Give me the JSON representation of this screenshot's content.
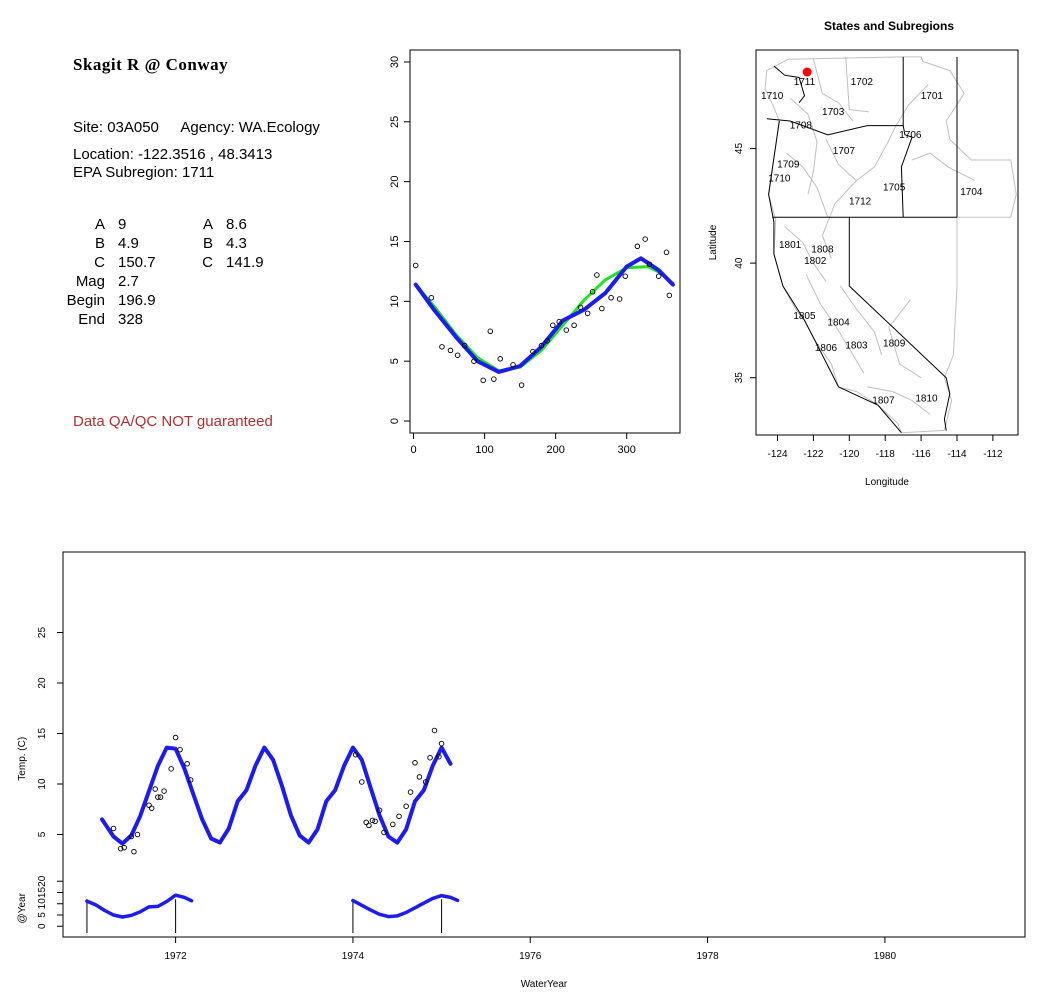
{
  "site": {
    "title": "Skagit R @ Conway",
    "site_line_label": "Site:",
    "site_id": "03A050",
    "agency_label": "Agency:",
    "agency": "WA.Ecology",
    "location_line": "Location: -122.3516 , 48.3413",
    "subregion_line": "EPA Subregion: 1711",
    "qa_note": "Data QA/QC NOT guaranteed"
  },
  "params": [
    {
      "key": "A",
      "val": "9",
      "key2": "A",
      "val2": "8.6"
    },
    {
      "key": "B",
      "val": "4.9",
      "key2": "B",
      "val2": "4.3"
    },
    {
      "key": "C",
      "val": "150.7",
      "key2": "C",
      "val2": "141.9"
    },
    {
      "key": "Mag",
      "val": "2.7",
      "key2": "",
      "val2": ""
    },
    {
      "key": "Begin",
      "val": "196.9",
      "key2": "",
      "val2": ""
    },
    {
      "key": "End",
      "val": "328",
      "key2": "",
      "val2": ""
    }
  ],
  "colors": {
    "blue": "#1c1cf0",
    "green": "#1ee61e",
    "red": "#ff0000",
    "outline": "#000000",
    "grey": "#c0c0c0",
    "qa": "#b03030"
  },
  "chart_data": [
    {
      "type": "scatter",
      "title": "",
      "xlabel": "",
      "ylabel": "",
      "xlim": [
        -5,
        375
      ],
      "ylim": [
        -1,
        31
      ],
      "xticks": [
        0,
        100,
        200,
        300
      ],
      "yticks": [
        0,
        5,
        10,
        15,
        20,
        25,
        30
      ],
      "points": [
        [
          3,
          13.0
        ],
        [
          25,
          10.3
        ],
        [
          40,
          6.2
        ],
        [
          52,
          5.9
        ],
        [
          62,
          5.5
        ],
        [
          72,
          6.3
        ],
        [
          85,
          5.0
        ],
        [
          98,
          3.4
        ],
        [
          108,
          7.5
        ],
        [
          113,
          3.5
        ],
        [
          122,
          5.2
        ],
        [
          140,
          4.7
        ],
        [
          152,
          3.0
        ],
        [
          168,
          5.8
        ],
        [
          180,
          6.3
        ],
        [
          188,
          6.7
        ],
        [
          196,
          8.0
        ],
        [
          205,
          8.3
        ],
        [
          215,
          7.6
        ],
        [
          226,
          8.0
        ],
        [
          235,
          9.5
        ],
        [
          245,
          9.0
        ],
        [
          252,
          10.8
        ],
        [
          258,
          12.2
        ],
        [
          265,
          9.4
        ],
        [
          278,
          10.3
        ],
        [
          290,
          10.2
        ],
        [
          298,
          12.1
        ],
        [
          315,
          14.6
        ],
        [
          326,
          15.2
        ],
        [
          332,
          13.1
        ],
        [
          345,
          12.1
        ],
        [
          356,
          14.1
        ],
        [
          360,
          10.5
        ]
      ],
      "series": [
        {
          "color": "blue",
          "curve": [
            [
              3,
              11.4
            ],
            [
              30,
              9.2
            ],
            [
              60,
              7.0
            ],
            [
              90,
              5.0
            ],
            [
              120,
              4.1
            ],
            [
              150,
              4.6
            ],
            [
              180,
              6.2
            ],
            [
              210,
              8.4
            ],
            [
              240,
              9.3
            ],
            [
              270,
              10.7
            ],
            [
              300,
              12.9
            ],
            [
              320,
              13.6
            ],
            [
              345,
              12.6
            ],
            [
              365,
              11.4
            ]
          ]
        },
        {
          "color": "green",
          "curve": [
            [
              3,
              11.4
            ],
            [
              30,
              9.5
            ],
            [
              60,
              7.2
            ],
            [
              90,
              5.3
            ],
            [
              120,
              4.2
            ],
            [
              150,
              4.5
            ],
            [
              180,
              5.9
            ],
            [
              210,
              8.0
            ],
            [
              240,
              10.1
            ],
            [
              270,
              11.8
            ],
            [
              300,
              12.8
            ],
            [
              330,
              12.9
            ],
            [
              350,
              12.3
            ],
            [
              365,
              11.5
            ]
          ]
        }
      ]
    },
    {
      "type": "map",
      "title": "States and Subregions",
      "xlabel": "Longitude",
      "ylabel": "Latitude",
      "xlim": [
        -125.2,
        -110.6
      ],
      "ylim": [
        32.5,
        49.3
      ],
      "xticks": [
        -124,
        -122,
        -120,
        -118,
        -116,
        -114,
        -112
      ],
      "yticks": [
        35,
        40,
        45
      ],
      "site_point": [
        -122.35,
        48.34
      ],
      "regions": [
        {
          "label": "1702",
          "lon": -119.3,
          "lat": 47.9
        },
        {
          "label": "1701",
          "lon": -115.4,
          "lat": 47.3
        },
        {
          "label": "1711",
          "lon": -122.5,
          "lat": 47.9
        },
        {
          "label": "1710",
          "lon": -124.3,
          "lat": 47.3
        },
        {
          "label": "1703",
          "lon": -120.9,
          "lat": 46.6
        },
        {
          "label": "1708",
          "lon": -122.7,
          "lat": 46.0
        },
        {
          "label": "1706",
          "lon": -116.6,
          "lat": 45.6
        },
        {
          "label": "1707",
          "lon": -120.3,
          "lat": 44.9
        },
        {
          "label": "1709",
          "lon": -123.4,
          "lat": 44.3
        },
        {
          "label": "1710",
          "lon": -123.9,
          "lat": 43.7
        },
        {
          "label": "1705",
          "lon": -117.5,
          "lat": 43.3
        },
        {
          "label": "1704",
          "lon": -113.2,
          "lat": 43.1
        },
        {
          "label": "1712",
          "lon": -119.4,
          "lat": 42.7
        },
        {
          "label": "1801",
          "lon": -123.3,
          "lat": 40.8
        },
        {
          "label": "1808",
          "lon": -121.5,
          "lat": 40.6
        },
        {
          "label": "1802",
          "lon": -121.9,
          "lat": 40.1
        },
        {
          "label": "1805",
          "lon": -122.5,
          "lat": 37.7
        },
        {
          "label": "1804",
          "lon": -120.6,
          "lat": 37.4
        },
        {
          "label": "1806",
          "lon": -121.3,
          "lat": 36.3
        },
        {
          "label": "1803",
          "lon": -119.6,
          "lat": 36.4
        },
        {
          "label": "1809",
          "lon": -117.5,
          "lat": 36.5
        },
        {
          "label": "1807",
          "lon": -118.1,
          "lat": 34.0
        },
        {
          "label": "1810",
          "lon": -115.7,
          "lat": 34.1
        }
      ]
    },
    {
      "type": "scatter",
      "title": "",
      "xlabel": "WaterYear",
      "ylabel": "Temp. (C)",
      "xlim": [
        1970.73,
        1981.58
      ],
      "ylim": [
        0,
        30
      ],
      "xticks": [
        1972,
        1974,
        1976,
        1978,
        1980
      ],
      "yticks": [
        5,
        10,
        15,
        20,
        25
      ],
      "points": [
        [
          1971.3,
          5.6
        ],
        [
          1971.38,
          3.6
        ],
        [
          1971.42,
          3.7
        ],
        [
          1971.5,
          4.8
        ],
        [
          1971.53,
          3.3
        ],
        [
          1971.57,
          5.0
        ],
        [
          1971.7,
          7.9
        ],
        [
          1971.73,
          7.6
        ],
        [
          1971.77,
          9.5
        ],
        [
          1971.8,
          8.7
        ],
        [
          1971.83,
          8.7
        ],
        [
          1971.87,
          9.3
        ],
        [
          1971.95,
          11.5
        ],
        [
          1972.0,
          14.6
        ],
        [
          1972.05,
          13.4
        ],
        [
          1972.13,
          12.0
        ],
        [
          1972.17,
          10.4
        ],
        [
          1974.03,
          12.9
        ],
        [
          1974.1,
          10.2
        ],
        [
          1974.15,
          6.2
        ],
        [
          1974.18,
          5.9
        ],
        [
          1974.22,
          6.4
        ],
        [
          1974.25,
          6.3
        ],
        [
          1974.3,
          7.4
        ],
        [
          1974.35,
          5.2
        ],
        [
          1974.45,
          6.0
        ],
        [
          1974.52,
          6.8
        ],
        [
          1974.6,
          7.8
        ],
        [
          1974.65,
          9.2
        ],
        [
          1974.7,
          12.1
        ],
        [
          1974.75,
          10.7
        ],
        [
          1974.82,
          10.2
        ],
        [
          1974.87,
          12.6
        ],
        [
          1974.92,
          15.3
        ],
        [
          1974.97,
          12.7
        ],
        [
          1975.0,
          14.0
        ]
      ],
      "series": [
        {
          "color": "blue",
          "curve": [
            [
              1971.17,
              6.5
            ],
            [
              1971.3,
              4.8
            ],
            [
              1971.4,
              4.1
            ],
            [
              1971.5,
              4.9
            ],
            [
              1971.6,
              6.8
            ],
            [
              1971.7,
              9.3
            ],
            [
              1971.8,
              11.8
            ],
            [
              1971.9,
              13.6
            ],
            [
              1972.0,
              13.5
            ],
            [
              1972.1,
              11.5
            ],
            [
              1972.2,
              9.0
            ],
            [
              1972.3,
              6.5
            ],
            [
              1972.4,
              4.6
            ],
            [
              1972.5,
              4.2
            ],
            [
              1972.6,
              5.6
            ],
            [
              1972.7,
              8.3
            ],
            [
              1972.8,
              9.4
            ],
            [
              1972.9,
              11.8
            ],
            [
              1973.0,
              13.6
            ],
            [
              1973.1,
              12.4
            ],
            [
              1973.2,
              9.8
            ],
            [
              1973.3,
              6.9
            ],
            [
              1973.4,
              4.9
            ],
            [
              1973.5,
              4.2
            ],
            [
              1973.6,
              5.5
            ],
            [
              1973.7,
              8.3
            ],
            [
              1973.8,
              9.4
            ],
            [
              1973.9,
              11.8
            ],
            [
              1974.0,
              13.6
            ],
            [
              1974.1,
              12.4
            ],
            [
              1974.2,
              9.6
            ],
            [
              1974.3,
              6.9
            ],
            [
              1974.4,
              4.8
            ],
            [
              1974.5,
              4.2
            ],
            [
              1974.6,
              5.5
            ],
            [
              1974.7,
              8.3
            ],
            [
              1974.8,
              9.4
            ],
            [
              1974.9,
              11.8
            ],
            [
              1975.0,
              13.6
            ],
            [
              1975.1,
              12.0
            ]
          ]
        }
      ]
    },
    {
      "type": "line",
      "title": "",
      "xlabel": "",
      "ylabel": "@Year",
      "xlim": [
        1970.73,
        1981.58
      ],
      "ylim": [
        -3,
        25
      ],
      "yticks": [
        0,
        5,
        10,
        15,
        20
      ],
      "series": [
        {
          "color": "blue",
          "curve": [
            [
              1971.0,
              11.2
            ],
            [
              1971.1,
              9.5
            ],
            [
              1971.2,
              7.0
            ],
            [
              1971.3,
              5.0
            ],
            [
              1971.4,
              4.1
            ],
            [
              1971.5,
              4.8
            ],
            [
              1971.6,
              6.4
            ],
            [
              1971.7,
              8.6
            ],
            [
              1971.8,
              8.8
            ],
            [
              1971.9,
              11.0
            ],
            [
              1972.0,
              13.8
            ],
            [
              1972.1,
              12.8
            ],
            [
              1972.18,
              11.3
            ]
          ]
        },
        {
          "color": "blue",
          "curve": [
            [
              1974.0,
              11.4
            ],
            [
              1974.1,
              9.3
            ],
            [
              1974.2,
              7.2
            ],
            [
              1974.3,
              5.3
            ],
            [
              1974.4,
              4.3
            ],
            [
              1974.5,
              4.6
            ],
            [
              1974.6,
              6.1
            ],
            [
              1974.7,
              8.2
            ],
            [
              1974.8,
              10.3
            ],
            [
              1974.9,
              12.4
            ],
            [
              1975.0,
              13.6
            ],
            [
              1975.1,
              12.8
            ],
            [
              1975.18,
              11.5
            ]
          ]
        }
      ],
      "drops": [
        1971.0,
        1972.0,
        1974.0,
        1975.0
      ]
    }
  ]
}
